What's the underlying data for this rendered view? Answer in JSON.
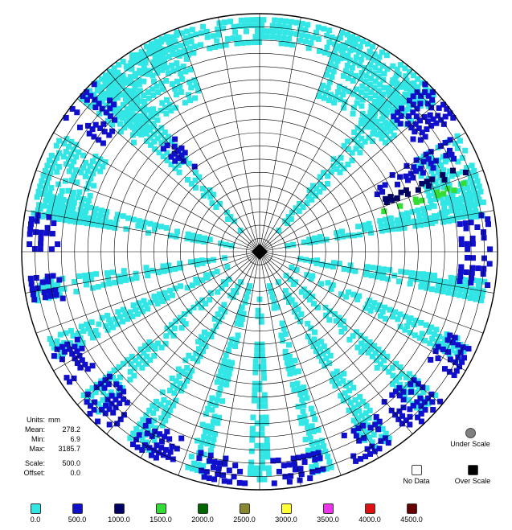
{
  "chart_data": {
    "type": "heatmap",
    "projection": "polar",
    "stats": {
      "units_label": "Units:",
      "units": "mm",
      "mean_label": "Mean:",
      "mean": "278.2",
      "min_label": "Min:",
      "min": "6.9",
      "max_label": "Max:",
      "max": "3185.7",
      "scale_label": "Scale:",
      "scale": "500.0",
      "offset_label": "Offset:",
      "offset": "0.0"
    },
    "legend": [
      {
        "label": "0.0",
        "color": "#33e6e6"
      },
      {
        "label": "500.0",
        "color": "#1010cc"
      },
      {
        "label": "1000.0",
        "color": "#000066"
      },
      {
        "label": "1500.0",
        "color": "#33dd33"
      },
      {
        "label": "2000.0",
        "color": "#006600"
      },
      {
        "label": "2500.0",
        "color": "#888833"
      },
      {
        "label": "3000.0",
        "color": "#ffff33"
      },
      {
        "label": "3500.0",
        "color": "#ee33ee"
      },
      {
        "label": "4000.0",
        "color": "#dd1111"
      },
      {
        "label": "4500.0",
        "color": "#660000"
      }
    ],
    "special": {
      "under_scale": {
        "label": "Under Scale",
        "color": "#808080"
      },
      "no_data": {
        "label": "No Data",
        "color": "#ffffff"
      },
      "over_scale": {
        "label": "Over Scale",
        "color": "#000000"
      }
    },
    "grid": {
      "rings": 18,
      "spokes": 36
    },
    "bands": [
      {
        "angle_deg": -132,
        "width_deg": 9,
        "r_from": 0.12,
        "r_to": 0.97,
        "value": 0
      },
      {
        "angle_deg": -48,
        "width_deg": 9,
        "r_from": 0.12,
        "r_to": 0.97,
        "value": 0
      },
      {
        "angle_deg": -168,
        "width_deg": 7,
        "r_from": 0.12,
        "r_to": 0.97,
        "value": 0
      },
      {
        "angle_deg": -12,
        "width_deg": 7,
        "r_from": 0.12,
        "r_to": 0.97,
        "value": 0
      },
      {
        "angle_deg": 170,
        "width_deg": 6,
        "r_from": 0.15,
        "r_to": 0.97,
        "value": 0
      },
      {
        "angle_deg": 155,
        "width_deg": 6,
        "r_from": 0.15,
        "r_to": 0.97,
        "value": 0
      },
      {
        "angle_deg": 138,
        "width_deg": 7,
        "r_from": 0.15,
        "r_to": 0.97,
        "value": 0
      },
      {
        "angle_deg": 122,
        "width_deg": 7,
        "r_from": 0.15,
        "r_to": 0.97,
        "value": 0
      },
      {
        "angle_deg": 106,
        "width_deg": 6,
        "r_from": 0.15,
        "r_to": 0.97,
        "value": 0
      },
      {
        "angle_deg": 90,
        "width_deg": 6,
        "r_from": 0.2,
        "r_to": 0.97,
        "value": 0
      },
      {
        "angle_deg": 74,
        "width_deg": 6,
        "r_from": 0.15,
        "r_to": 0.97,
        "value": 0
      },
      {
        "angle_deg": 58,
        "width_deg": 7,
        "r_from": 0.15,
        "r_to": 0.97,
        "value": 0
      },
      {
        "angle_deg": 42,
        "width_deg": 7,
        "r_from": 0.15,
        "r_to": 0.97,
        "value": 0
      },
      {
        "angle_deg": 26,
        "width_deg": 6,
        "r_from": 0.15,
        "r_to": 0.97,
        "value": 0
      },
      {
        "angle_deg": 10,
        "width_deg": 6,
        "r_from": 0.15,
        "r_to": 0.97,
        "value": 0
      },
      {
        "angle_deg": -100,
        "width_deg": 70,
        "r_from": 0.88,
        "r_to": 1.0,
        "value": 0
      },
      {
        "angle_deg": -55,
        "width_deg": 30,
        "r_from": 0.7,
        "r_to": 1.0,
        "value": 0
      },
      {
        "angle_deg": -125,
        "width_deg": 30,
        "r_from": 0.7,
        "r_to": 1.0,
        "value": 0
      },
      {
        "angle_deg": -20,
        "width_deg": 22,
        "r_from": 0.75,
        "r_to": 0.98,
        "value": 0
      },
      {
        "angle_deg": -160,
        "width_deg": 22,
        "r_from": 0.75,
        "r_to": 0.98,
        "value": 0
      },
      {
        "angle_deg": -140,
        "width_deg": 12,
        "r_from": 0.8,
        "r_to": 1.0,
        "value": 500
      },
      {
        "angle_deg": -130,
        "width_deg": 8,
        "r_from": 0.45,
        "r_to": 0.6,
        "value": 500
      },
      {
        "angle_deg": -40,
        "width_deg": 12,
        "r_from": 0.8,
        "r_to": 1.0,
        "value": 500
      },
      {
        "angle_deg": -28,
        "width_deg": 6,
        "r_from": 0.55,
        "r_to": 0.95,
        "value": 500
      },
      {
        "angle_deg": -22,
        "width_deg": 3,
        "r_from": 0.55,
        "r_to": 0.95,
        "value": 1000
      },
      {
        "angle_deg": -18,
        "width_deg": 2,
        "r_from": 0.55,
        "r_to": 0.92,
        "value": 1500
      },
      {
        "angle_deg": 5,
        "width_deg": 8,
        "r_from": 0.85,
        "r_to": 0.99,
        "value": 500
      },
      {
        "angle_deg": 28,
        "width_deg": 10,
        "r_from": 0.85,
        "r_to": 0.99,
        "value": 500
      },
      {
        "angle_deg": 45,
        "width_deg": 12,
        "r_from": 0.82,
        "r_to": 0.99,
        "value": 500
      },
      {
        "angle_deg": 60,
        "width_deg": 12,
        "r_from": 0.85,
        "r_to": 0.99,
        "value": 500
      },
      {
        "angle_deg": 80,
        "width_deg": 14,
        "r_from": 0.88,
        "r_to": 0.99,
        "value": 500
      },
      {
        "angle_deg": 100,
        "width_deg": 14,
        "r_from": 0.88,
        "r_to": 0.99,
        "value": 500
      },
      {
        "angle_deg": 118,
        "width_deg": 12,
        "r_from": 0.85,
        "r_to": 0.99,
        "value": 500
      },
      {
        "angle_deg": 135,
        "width_deg": 12,
        "r_from": 0.82,
        "r_to": 0.99,
        "value": 500
      },
      {
        "angle_deg": 150,
        "width_deg": 10,
        "r_from": 0.85,
        "r_to": 0.99,
        "value": 500
      },
      {
        "angle_deg": 170,
        "width_deg": 8,
        "r_from": 0.85,
        "r_to": 0.99,
        "value": 500
      },
      {
        "angle_deg": -175,
        "width_deg": 10,
        "r_from": 0.85,
        "r_to": 0.99,
        "value": 500
      },
      {
        "angle_deg": -5,
        "width_deg": 10,
        "r_from": 0.85,
        "r_to": 0.99,
        "value": 500
      }
    ],
    "center_value": "over_scale"
  }
}
